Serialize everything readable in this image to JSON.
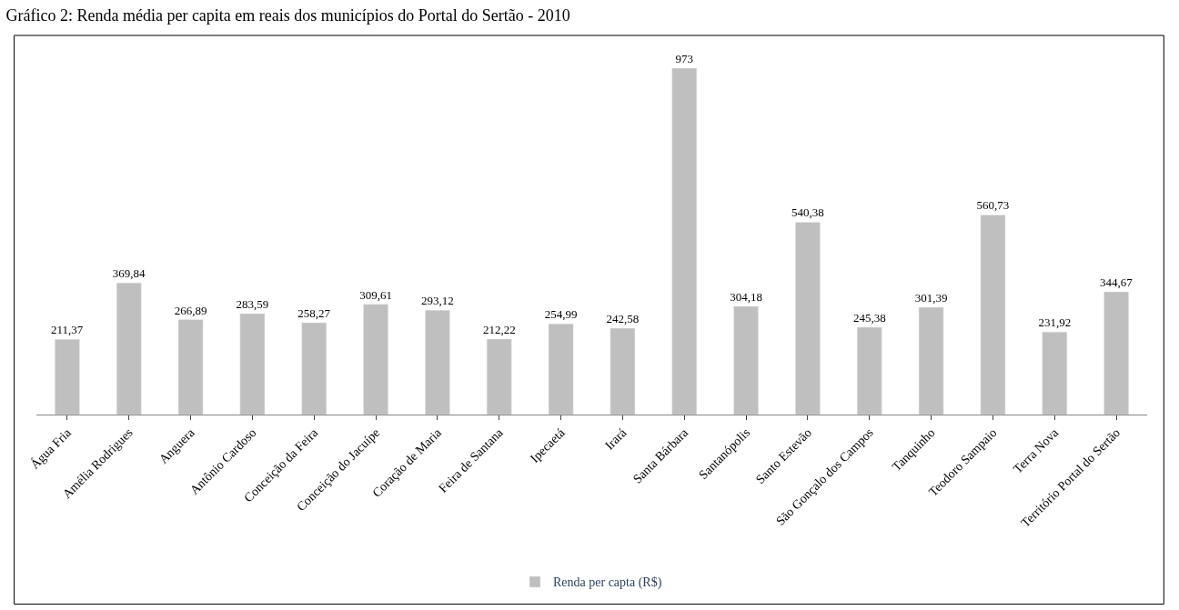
{
  "chart_data": {
    "type": "bar",
    "title": "Gráfico 2: Renda média per capita em reais dos municípios do Portal do Sertão - 2010",
    "categories": [
      "Água Fria",
      "Amélia Rodrigues",
      "Anguera",
      "Antônio Cardoso",
      "Conceição da Feira",
      "Conceição do Jacuípe",
      "Coração de Maria",
      "Feira de Santana",
      "Ipecaetá",
      "Irará",
      "Santa Bárbara",
      "Santanópolis",
      "Santo Estevão",
      "São Gonçalo dos Campos",
      "Tanquinho",
      "Teodoro Sampaio",
      "Terra Nova",
      "Território Portal do Sertão"
    ],
    "series": [
      {
        "name": "Renda per capta (R$)",
        "color": "#bfbfbf",
        "values": [
          211.37,
          369.84,
          266.89,
          283.59,
          258.27,
          309.61,
          293.12,
          212.22,
          254.99,
          242.58,
          973,
          304.18,
          540.38,
          245.38,
          301.39,
          560.73,
          231.92,
          344.67
        ],
        "value_labels": [
          "211,37",
          "369,84",
          "266,89",
          "283,59",
          "258,27",
          "309,61",
          "293,12",
          "212,22",
          "254,99",
          "242,58",
          "973",
          "304,18",
          "540,38",
          "245,38",
          "301,39",
          "560,73",
          "231,92",
          "344,67"
        ]
      }
    ],
    "legend": "bottom"
  }
}
